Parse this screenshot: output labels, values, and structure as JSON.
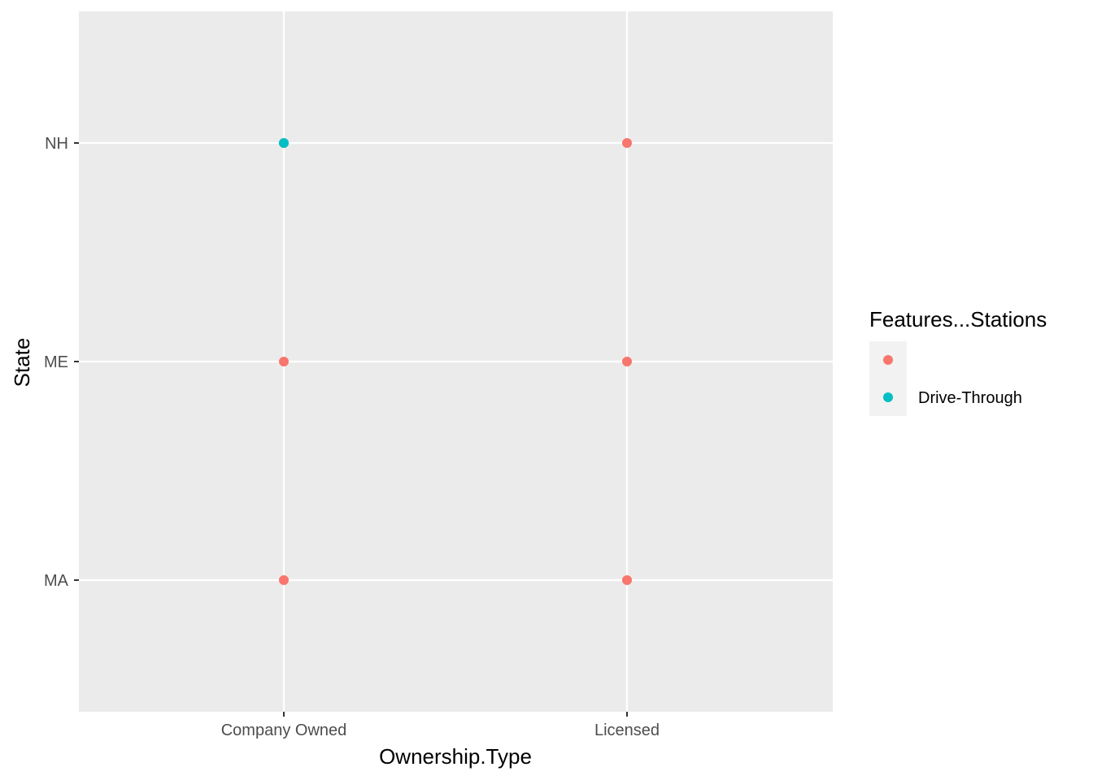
{
  "chart_data": {
    "type": "scatter",
    "title": "",
    "xlabel": "Ownership.Type",
    "ylabel": "State",
    "x_categories": [
      "Company Owned",
      "Licensed"
    ],
    "y_categories": [
      "MA",
      "ME",
      "NH"
    ],
    "grid": true,
    "legend_position": "right",
    "legend": {
      "title": "Features...Stations",
      "entries": [
        {
          "label": "",
          "color": "#F8766D"
        },
        {
          "label": "Drive-Through",
          "color": "#00BFC4"
        }
      ]
    },
    "points": [
      {
        "x": "Company Owned",
        "y": "NH",
        "group": ""
      },
      {
        "x": "Company Owned",
        "y": "NH",
        "group": "Drive-Through"
      },
      {
        "x": "Company Owned",
        "y": "ME",
        "group": ""
      },
      {
        "x": "Company Owned",
        "y": "MA",
        "group": ""
      },
      {
        "x": "Licensed",
        "y": "NH",
        "group": ""
      },
      {
        "x": "Licensed",
        "y": "ME",
        "group": ""
      },
      {
        "x": "Licensed",
        "y": "MA",
        "group": ""
      }
    ],
    "colors": {
      "panel_background": "#EBEBEB",
      "grid": "#FFFFFF",
      "legend_key_background": "#F2F2F2"
    }
  }
}
